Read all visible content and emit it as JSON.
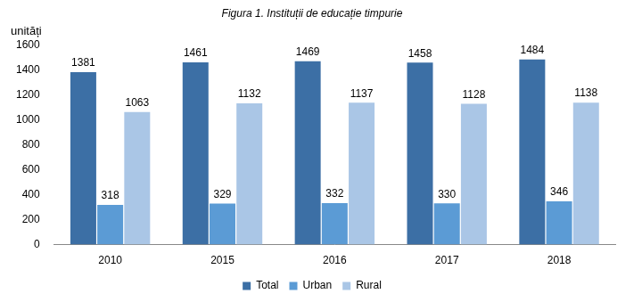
{
  "chart_data": {
    "type": "bar",
    "title": "Figura 1. Instituții de educație timpurie",
    "ylabel": "unități",
    "categories": [
      "2010",
      "2015",
      "2016",
      "2017",
      "2018"
    ],
    "series": [
      {
        "name": "Total",
        "color": "#3c6fa5",
        "values": [
          1381,
          1461,
          1469,
          1458,
          1484
        ]
      },
      {
        "name": "Urban",
        "color": "#5b9bd5",
        "values": [
          318,
          329,
          332,
          330,
          346
        ]
      },
      {
        "name": "Rural",
        "color": "#aac6e6",
        "values": [
          1063,
          1132,
          1137,
          1128,
          1138
        ]
      }
    ],
    "ylim": [
      0,
      1600
    ],
    "yticks": [
      0,
      200,
      400,
      600,
      800,
      1000,
      1200,
      1400,
      1600
    ],
    "grid": false,
    "legend": "bottom",
    "data_labels": true
  }
}
